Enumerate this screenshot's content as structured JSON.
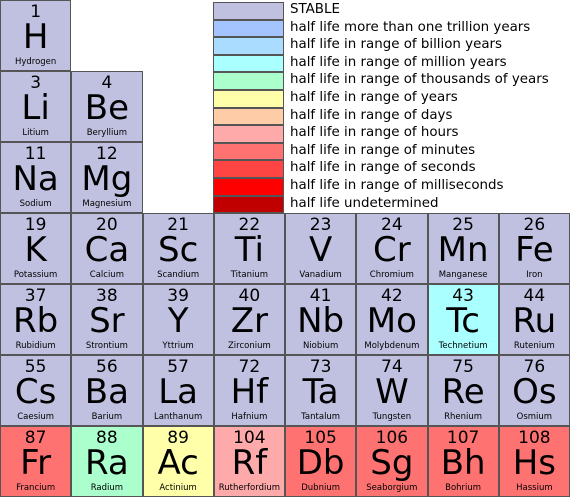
{
  "legend": [
    {
      "label": "STABLE",
      "color": "#c0c0e0"
    },
    {
      "label": "half life more than one trillion years",
      "color": "#a4c4ff"
    },
    {
      "label": "half life in range of billion years",
      "color": "#aadcff"
    },
    {
      "label": "half life in range of million years",
      "color": "#aaffff"
    },
    {
      "label": "half life in range of thousands of years",
      "color": "#aaffcc"
    },
    {
      "label": "half life in range of years",
      "color": "#ffffaa"
    },
    {
      "label": "half life in range of days",
      "color": "#ffcca8"
    },
    {
      "label": "half life in range of hours",
      "color": "#ffaaaa"
    },
    {
      "label": "half life in range of minutes",
      "color": "#ff7272"
    },
    {
      "label": "half life in range of seconds",
      "color": "#ff4444"
    },
    {
      "label": "half life in range of milliseconds",
      "color": "#ff0000"
    },
    {
      "label": "half life undetermined",
      "color": "#c00000"
    }
  ],
  "rows": [
    [
      {
        "number": "1",
        "symbol": "H",
        "name": "Hydrogen",
        "color": "#c0c0e0"
      }
    ],
    [
      {
        "number": "3",
        "symbol": "Li",
        "name": "Litium",
        "color": "#c0c0e0"
      },
      {
        "number": "4",
        "symbol": "Be",
        "name": "Beryllium",
        "color": "#c0c0e0"
      }
    ],
    [
      {
        "number": "11",
        "symbol": "Na",
        "name": "Sodium",
        "color": "#c0c0e0"
      },
      {
        "number": "12",
        "symbol": "Mg",
        "name": "Magnesium",
        "color": "#c0c0e0"
      }
    ],
    [
      {
        "number": "19",
        "symbol": "K",
        "name": "Potassium",
        "color": "#c0c0e0"
      },
      {
        "number": "20",
        "symbol": "Ca",
        "name": "Calcium",
        "color": "#c0c0e0"
      },
      {
        "number": "21",
        "symbol": "Sc",
        "name": "Scandium",
        "color": "#c0c0e0"
      },
      {
        "number": "22",
        "symbol": "Ti",
        "name": "Titanium",
        "color": "#c0c0e0"
      },
      {
        "number": "23",
        "symbol": "V",
        "name": "Vanadium",
        "color": "#c0c0e0"
      },
      {
        "number": "24",
        "symbol": "Cr",
        "name": "Chromium",
        "color": "#c0c0e0"
      },
      {
        "number": "25",
        "symbol": "Mn",
        "name": "Manganese",
        "color": "#c0c0e0"
      },
      {
        "number": "26",
        "symbol": "Fe",
        "name": "Iron",
        "color": "#c0c0e0"
      }
    ],
    [
      {
        "number": "37",
        "symbol": "Rb",
        "name": "Rubidium",
        "color": "#c0c0e0"
      },
      {
        "number": "38",
        "symbol": "Sr",
        "name": "Strontium",
        "color": "#c0c0e0"
      },
      {
        "number": "39",
        "symbol": "Y",
        "name": "Yttrium",
        "color": "#c0c0e0"
      },
      {
        "number": "40",
        "symbol": "Zr",
        "name": "Zirconium",
        "color": "#c0c0e0"
      },
      {
        "number": "41",
        "symbol": "Nb",
        "name": "Niobium",
        "color": "#c0c0e0"
      },
      {
        "number": "42",
        "symbol": "Mo",
        "name": "Molybdenum",
        "color": "#c0c0e0"
      },
      {
        "number": "43",
        "symbol": "Tc",
        "name": "Technetium",
        "color": "#aaffff"
      },
      {
        "number": "44",
        "symbol": "Ru",
        "name": "Rutenium",
        "color": "#c0c0e0"
      }
    ],
    [
      {
        "number": "55",
        "symbol": "Cs",
        "name": "Caesium",
        "color": "#c0c0e0"
      },
      {
        "number": "56",
        "symbol": "Ba",
        "name": "Barium",
        "color": "#c0c0e0"
      },
      {
        "number": "57",
        "symbol": "La",
        "name": "Lanthanum",
        "color": "#c0c0e0"
      },
      {
        "number": "72",
        "symbol": "Hf",
        "name": "Hafnium",
        "color": "#c0c0e0"
      },
      {
        "number": "73",
        "symbol": "Ta",
        "name": "Tantalum",
        "color": "#c0c0e0"
      },
      {
        "number": "74",
        "symbol": "W",
        "name": "Tungsten",
        "color": "#c0c0e0"
      },
      {
        "number": "75",
        "symbol": "Re",
        "name": "Rhenium",
        "color": "#c0c0e0"
      },
      {
        "number": "76",
        "symbol": "Os",
        "name": "Osmium",
        "color": "#c0c0e0"
      }
    ],
    [
      {
        "number": "87",
        "symbol": "Fr",
        "name": "Francium",
        "color": "#ff7272"
      },
      {
        "number": "88",
        "symbol": "Ra",
        "name": "Radium",
        "color": "#aaffcc"
      },
      {
        "number": "89",
        "symbol": "Ac",
        "name": "Actinium",
        "color": "#ffffaa"
      },
      {
        "number": "104",
        "symbol": "Rf",
        "name": "Rutherfordium",
        "color": "#ffaaaa"
      },
      {
        "number": "105",
        "symbol": "Db",
        "name": "Dubnium",
        "color": "#ff7272"
      },
      {
        "number": "106",
        "symbol": "Sg",
        "name": "Seaborgium",
        "color": "#ff7272"
      },
      {
        "number": "107",
        "symbol": "Bh",
        "name": "Bohrium",
        "color": "#ff7272"
      },
      {
        "number": "108",
        "symbol": "Hs",
        "name": "Hassium",
        "color": "#ff7272"
      }
    ]
  ]
}
